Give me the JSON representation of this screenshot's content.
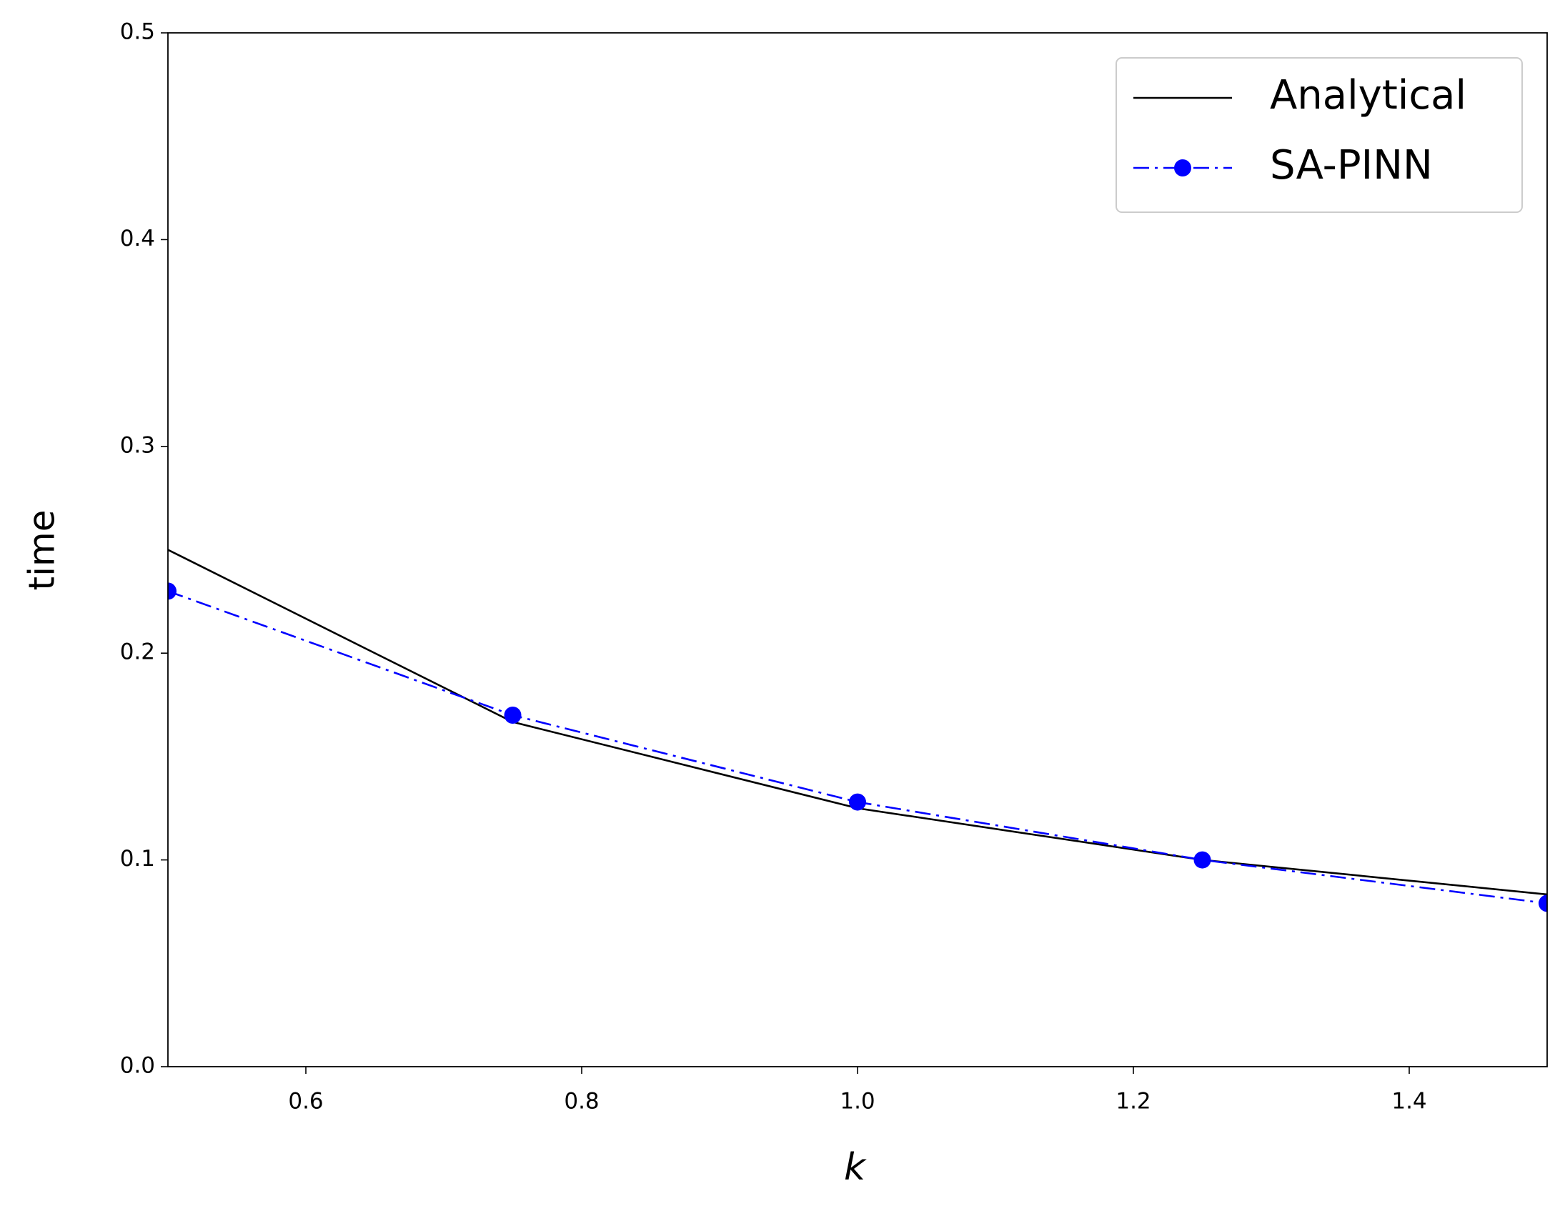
{
  "chart_data": {
    "type": "line",
    "xlabel": "k",
    "ylabel": "time",
    "x": [
      0.5,
      0.75,
      1.0,
      1.25,
      1.5
    ],
    "series": [
      {
        "name": "Analytical",
        "color": "#000000",
        "linestyle": "-",
        "marker": null,
        "values": [
          0.25,
          0.1667,
          0.125,
          0.1,
          0.0833
        ]
      },
      {
        "name": "SA-PINN",
        "color": "#0000ff",
        "linestyle": "-.",
        "marker": "o",
        "values": [
          0.23,
          0.17,
          0.128,
          0.1,
          0.079
        ]
      }
    ],
    "xlim": [
      0.5,
      1.5
    ],
    "xticks": [
      0.6,
      0.8,
      {
        "value": 1.0,
        "label": "1.0"
      },
      1.2,
      1.4
    ],
    "ylim": [
      0,
      0.5
    ],
    "yticks": [
      {
        "value": 0,
        "label": "0.0"
      },
      0.1,
      0.2,
      0.3,
      0.4,
      0.5
    ],
    "grid": false,
    "legend": "upper right"
  }
}
